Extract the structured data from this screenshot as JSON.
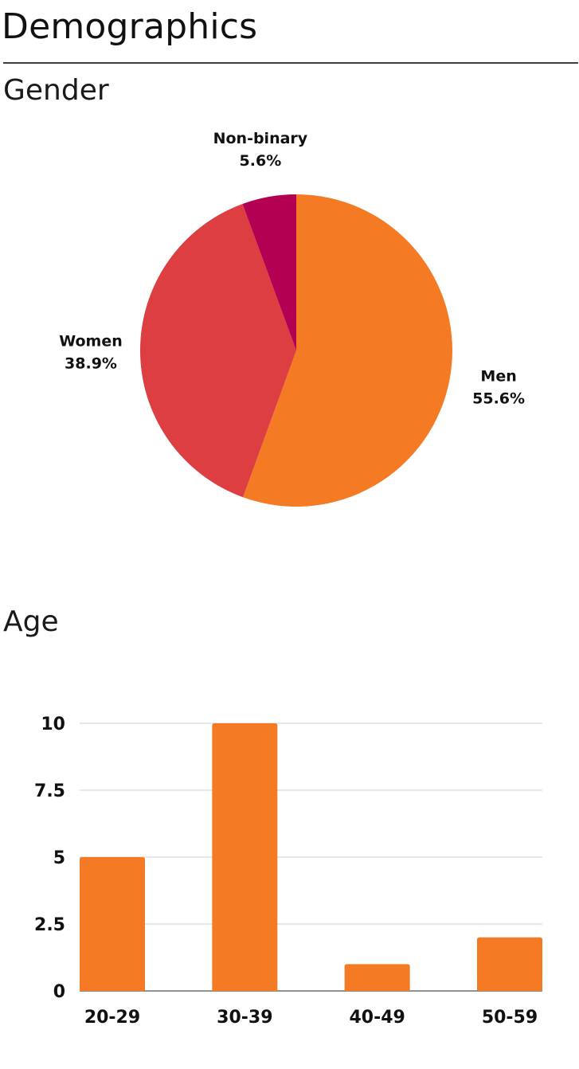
{
  "page": {
    "title": "Demographics"
  },
  "gender": {
    "title": "Gender"
  },
  "age": {
    "title": "Age"
  },
  "chart_data": [
    {
      "type": "pie",
      "title": "Gender",
      "slices": [
        {
          "label": "Men",
          "value": 55.6,
          "display": "55.6%",
          "color": "#f47a23"
        },
        {
          "label": "Women",
          "value": 38.9,
          "display": "38.9%",
          "color": "#dc3e42"
        },
        {
          "label": "Non-binary",
          "value": 5.6,
          "display": "5.6%",
          "color": "#b30052"
        }
      ]
    },
    {
      "type": "bar",
      "title": "Age",
      "categories": [
        "20-29",
        "30-39",
        "40-49",
        "50-59"
      ],
      "values": [
        5,
        10,
        1,
        2
      ],
      "color": "#f47a23",
      "ylim": [
        0,
        10
      ],
      "yticks": [
        0,
        2.5,
        5,
        7.5,
        10
      ],
      "ytick_labels": [
        "0",
        "2.5",
        "5",
        "7.5",
        "10"
      ],
      "grid": true
    }
  ]
}
